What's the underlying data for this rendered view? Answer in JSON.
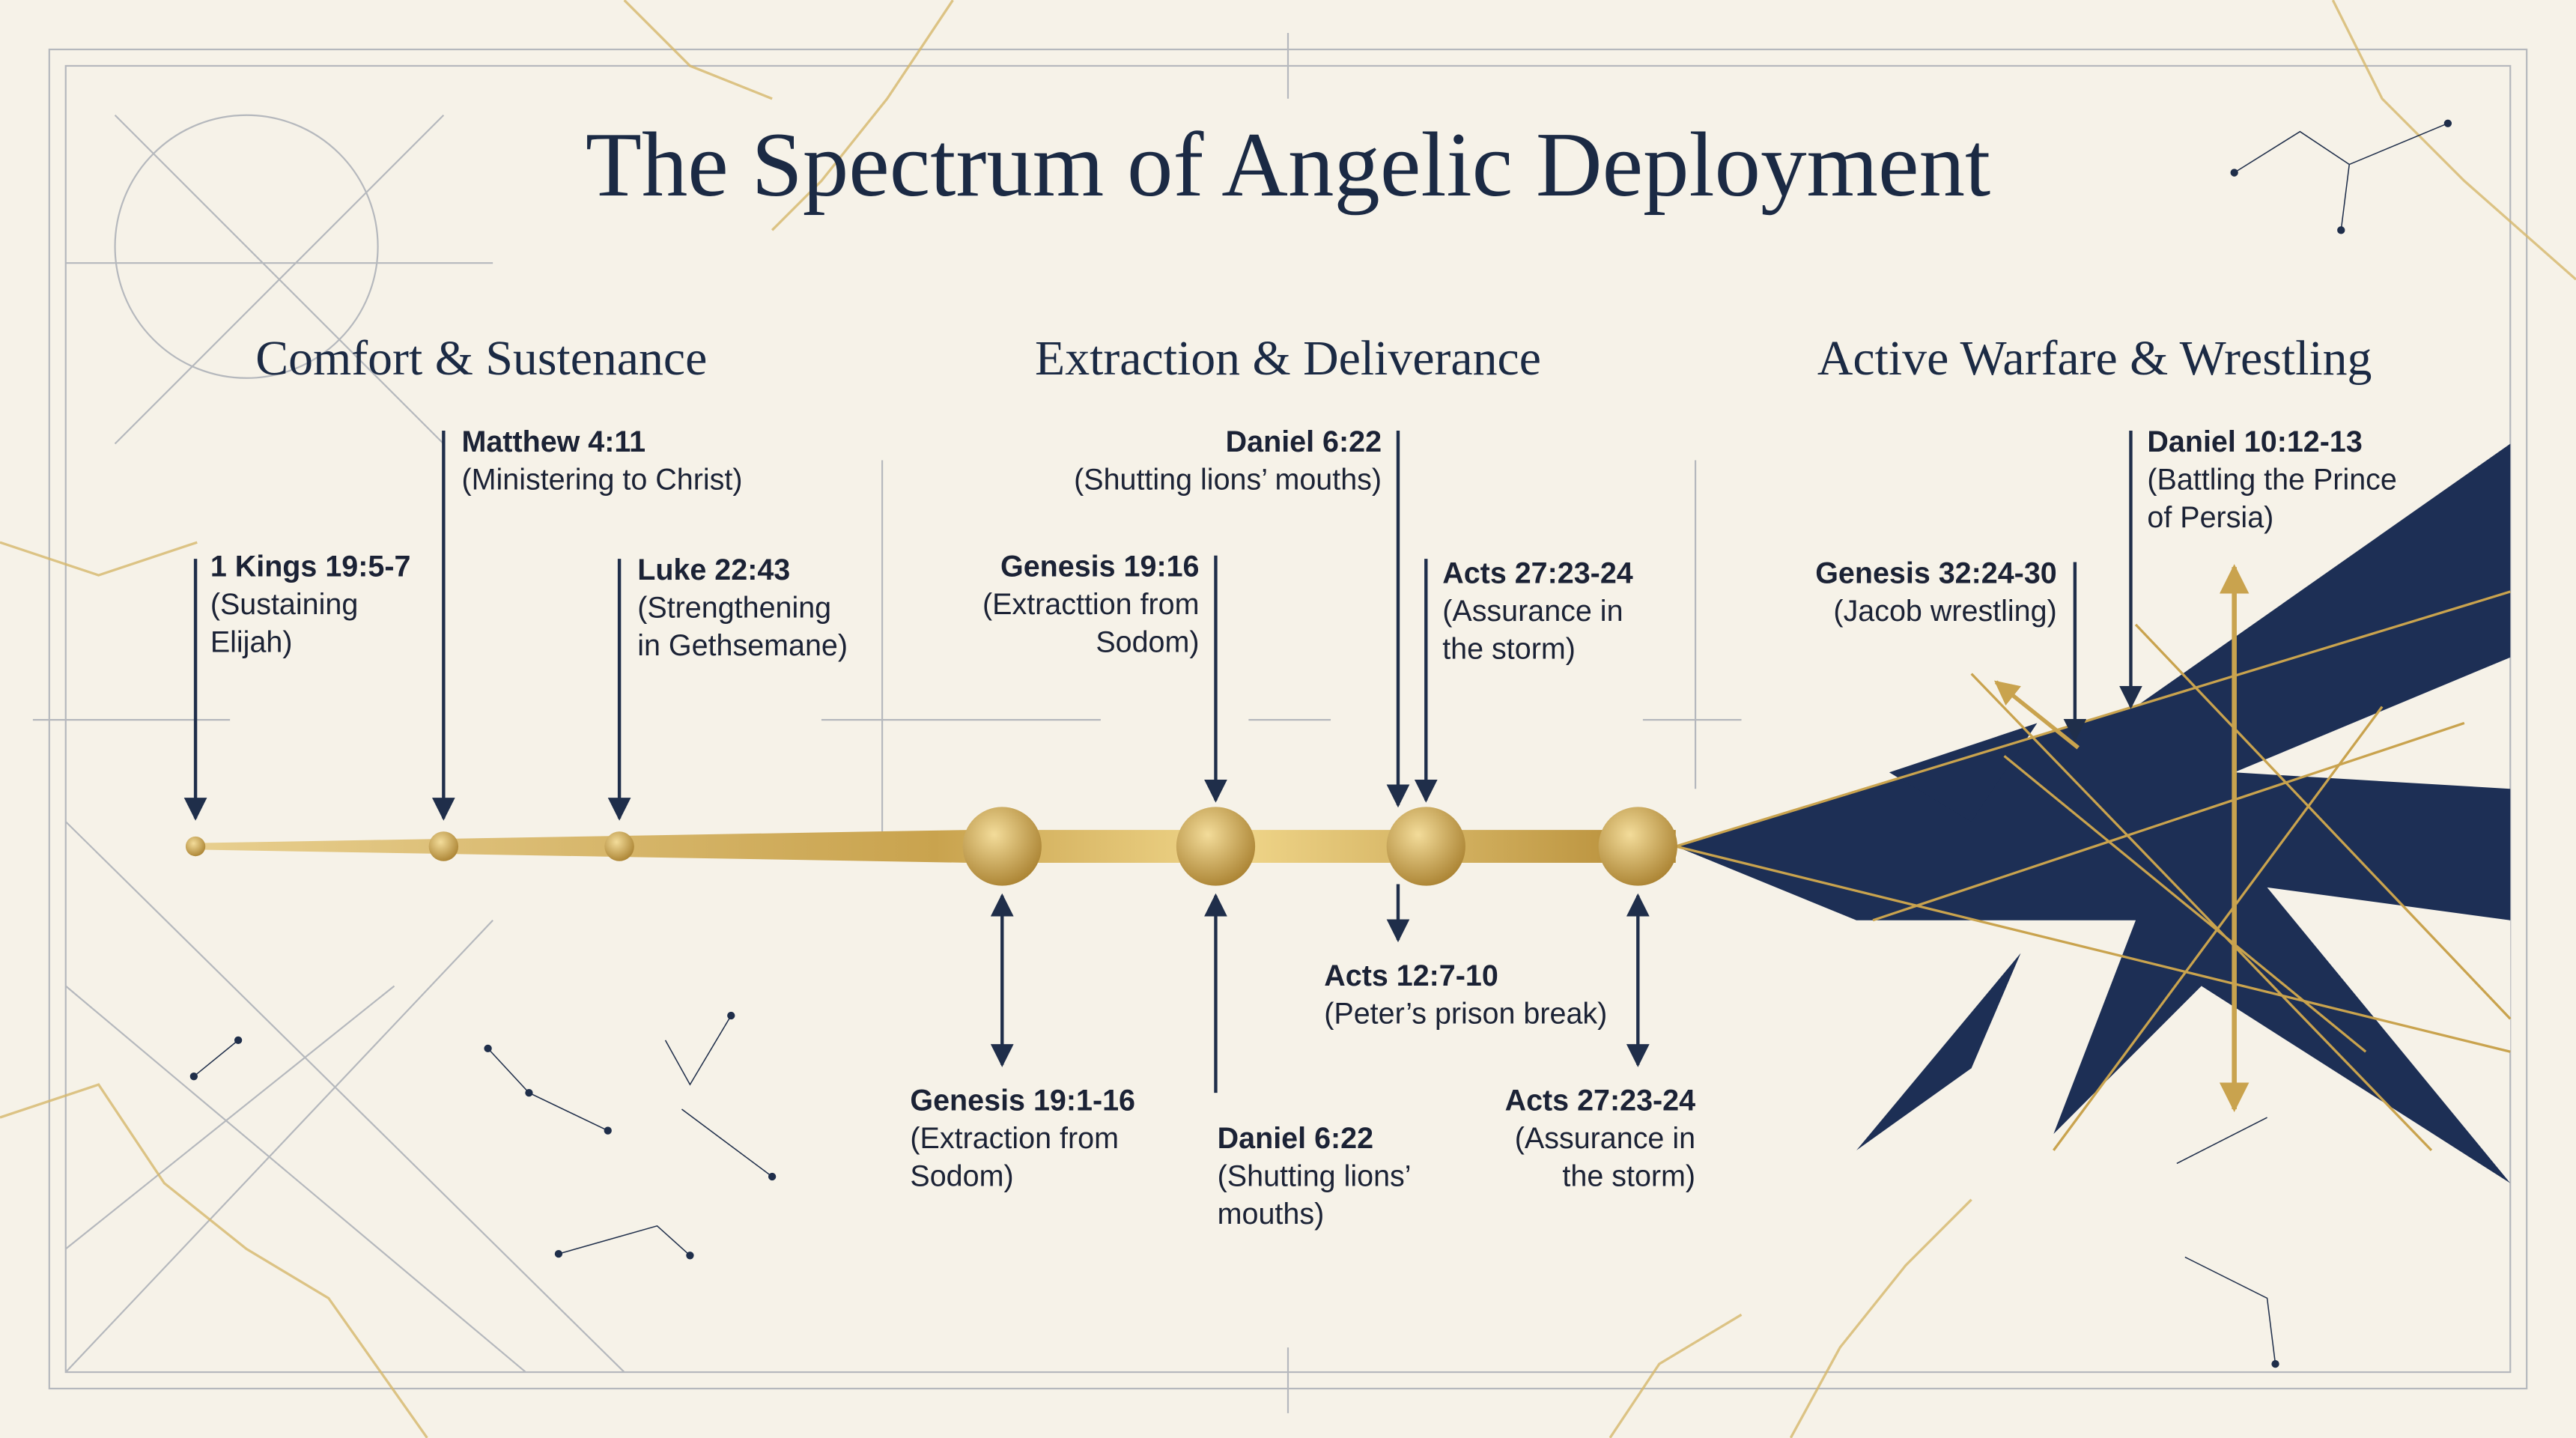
{
  "title": "The Spectrum of Angelic Deployment",
  "sections": [
    "Comfort & Sustenance",
    "Extraction & Deliverance",
    "Active Warfare & Wrestling"
  ],
  "annotations": [
    {
      "ref": "1 Kings 19:5-7",
      "note": [
        "(Sustaining",
        "Elijah)"
      ]
    },
    {
      "ref": "Matthew 4:11",
      "note": [
        "(Ministering to Christ)"
      ]
    },
    {
      "ref": "Luke 22:43",
      "note": [
        "(Strengthening",
        "in Gethsemane)"
      ]
    },
    {
      "ref": "Genesis 19:16",
      "note": [
        "(Extracttion from",
        "Sodom)"
      ]
    },
    {
      "ref": "Daniel 6:22",
      "note": [
        "(Shutting lions’ mouths)"
      ]
    },
    {
      "ref": "Acts 27:23-24",
      "note": [
        "(Assurance in",
        "the storm)"
      ]
    },
    {
      "ref": "Genesis 19:1-16",
      "note": [
        "(Extraction from",
        "Sodom)"
      ]
    },
    {
      "ref": "Daniel 6:22",
      "note": [
        "(Shutting lions’",
        "mouths)"
      ]
    },
    {
      "ref": "Acts 12:7-10",
      "note": [
        "(Peter’s prison break)"
      ]
    },
    {
      "ref": "Acts 27:23-24",
      "note": [
        "(Assurance in",
        "the storm)"
      ]
    },
    {
      "ref": "Genesis 32:24-30",
      "note": [
        "(Jacob wrestling)"
      ]
    },
    {
      "ref": "Daniel 10:12-13",
      "note": [
        "(Battling the Prince",
        "of Persia)"
      ]
    }
  ]
}
